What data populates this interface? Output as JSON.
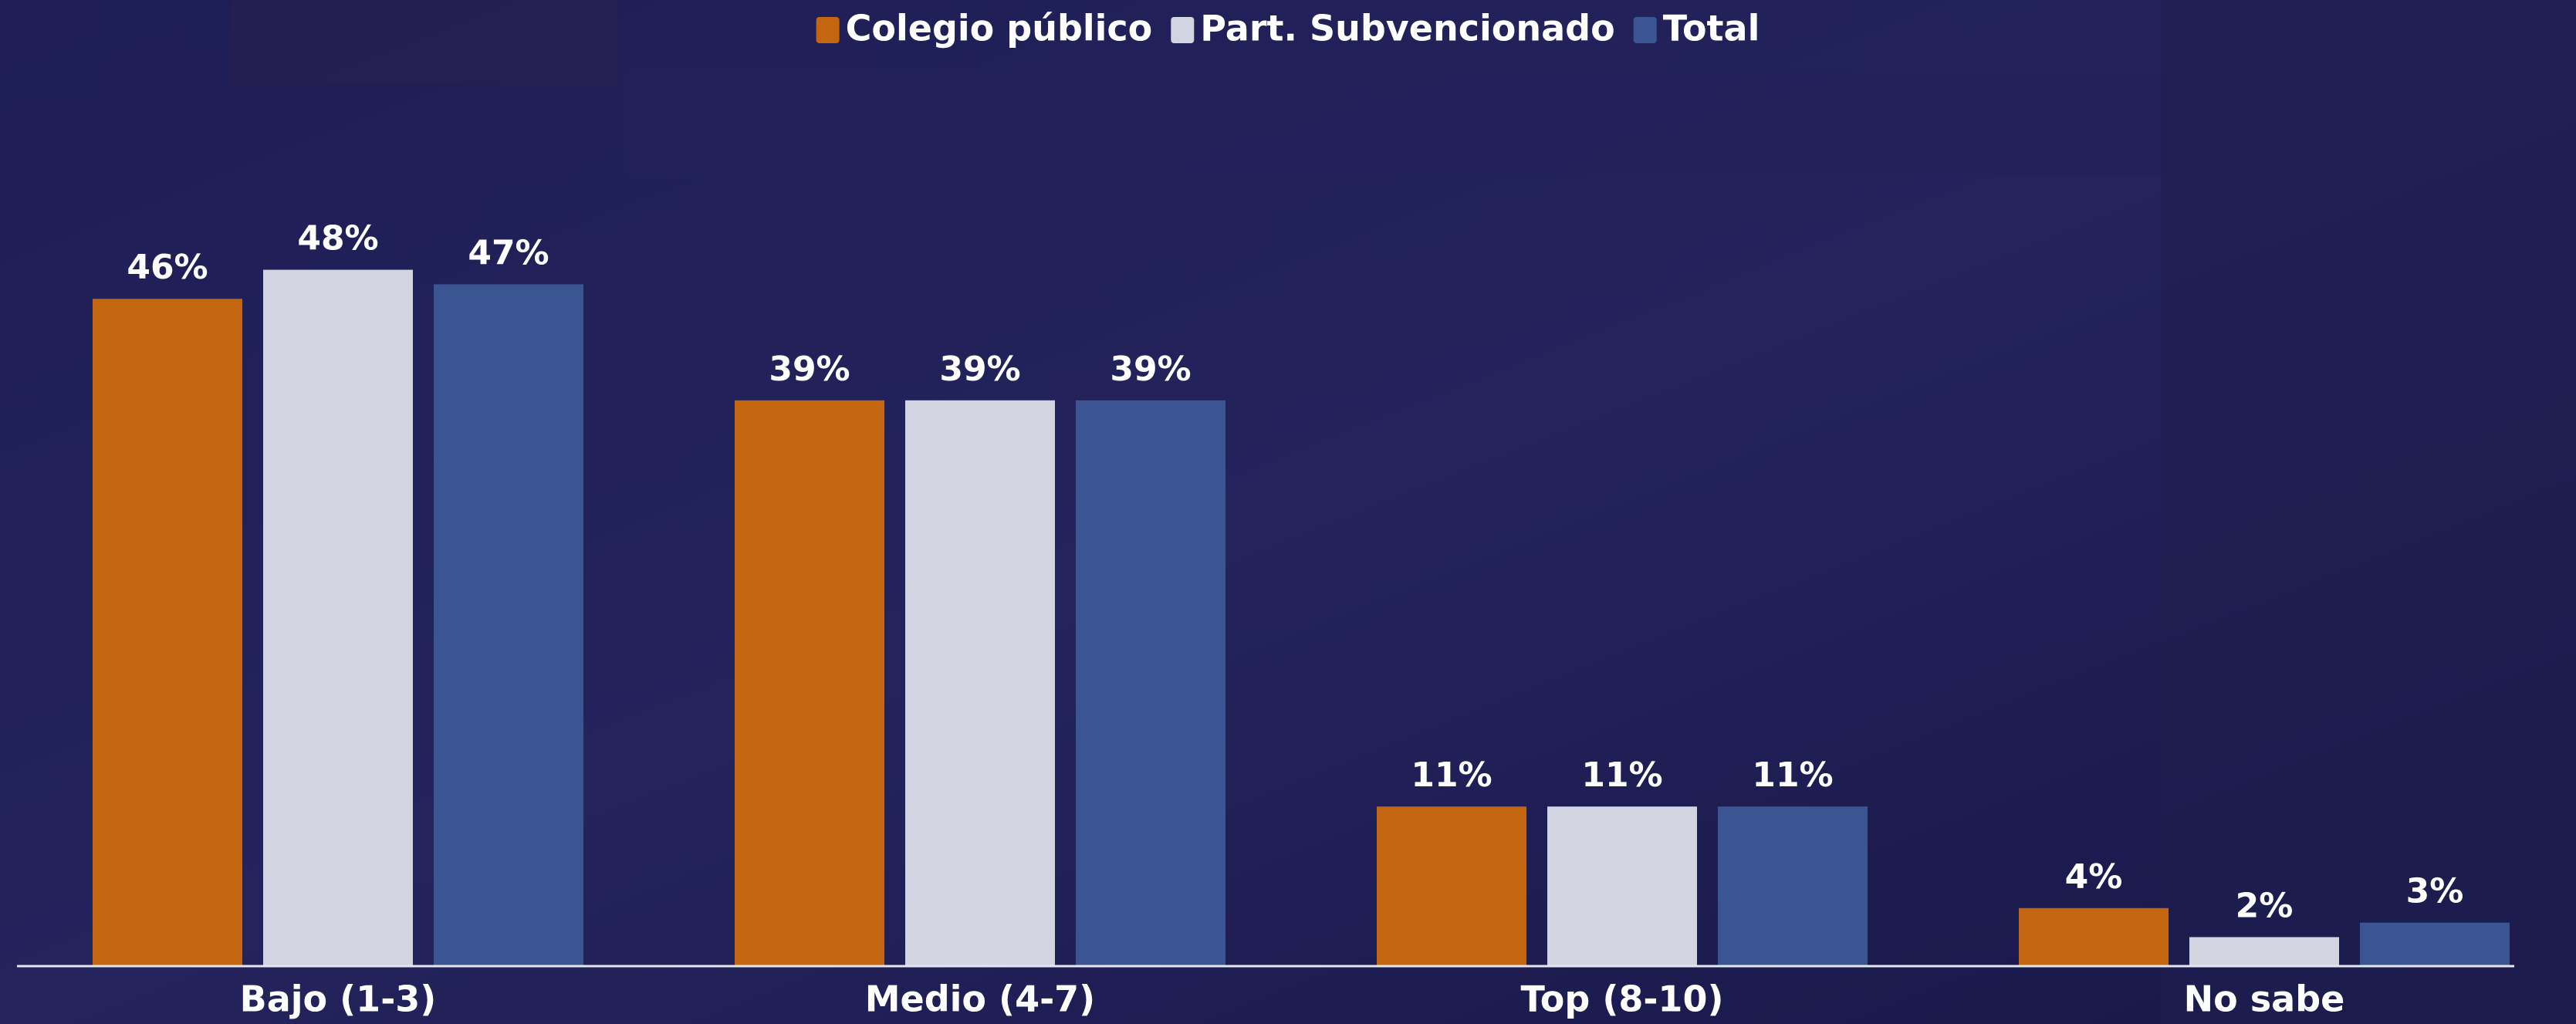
{
  "chart_data": {
    "type": "bar",
    "categories": [
      "Bajo (1-3)",
      "Medio (4-7)",
      "Top (8-10)",
      "No sabe"
    ],
    "series": [
      {
        "name": "Colegio público",
        "color": "#c4650f",
        "values": [
          46,
          39,
          11,
          4
        ],
        "value_labels": [
          "46%",
          "39%",
          "11%",
          "4%"
        ]
      },
      {
        "name": "Part. Subvencionado",
        "color": "#d3d4e1",
        "values": [
          48,
          39,
          11,
          2
        ],
        "value_labels": [
          "48%",
          "39%",
          "11%",
          "2%"
        ]
      },
      {
        "name": "Total",
        "color": "#3b5593",
        "values": [
          47,
          39,
          11,
          3
        ],
        "value_labels": [
          "47%",
          "39%",
          "11%",
          "3%"
        ]
      }
    ],
    "ylim": [
      0,
      50
    ],
    "legend": "top",
    "grid": false
  }
}
